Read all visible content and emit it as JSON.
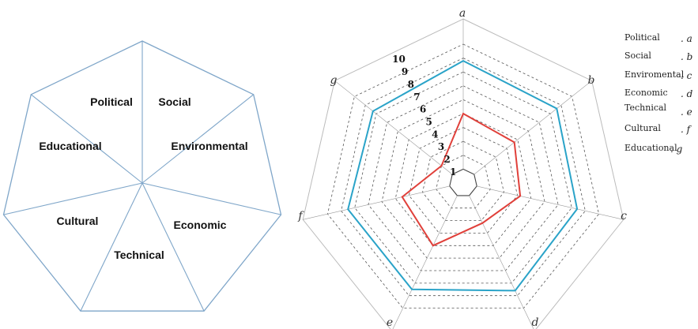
{
  "colors": {
    "heptagon_outline": "#7fa6c9",
    "frame_outline": "#bbbbbb",
    "grid_dashed": "#555555",
    "inner_ring": "#444444",
    "series_blue": "#2aa3c8",
    "series_red": "#e0403a"
  },
  "left_diagram": {
    "sectors": [
      "Political",
      "Social",
      "Environmental",
      "Economic",
      "Technical",
      "Cultural",
      "Educational"
    ]
  },
  "chart_data": {
    "type": "radar",
    "axes": [
      "a",
      "b",
      "c",
      "d",
      "e",
      "f",
      "g"
    ],
    "ring_labels": [
      "1",
      "2",
      "3",
      "4",
      "5",
      "6",
      "7",
      "8",
      "9",
      "10"
    ],
    "rmax": 10,
    "grid": true,
    "series": [
      {
        "values": [
          8.8,
          8.6,
          8.4,
          8.6,
          8.5,
          8.5,
          8.3
        ],
        "color": "#2aa3c8"
      },
      {
        "values": [
          5.0,
          4.7,
          4.2,
          3.2,
          5.0,
          4.5,
          2.0
        ],
        "color": "#e0403a"
      }
    ],
    "legend": [
      {
        "name": "Political",
        "letter": ". a"
      },
      {
        "name": "Social",
        "letter": ". b"
      },
      {
        "name": "Enviromental",
        "letter": ". c"
      },
      {
        "name": "Economic",
        "letter": ". d"
      },
      {
        "name": "Technical",
        "letter": ". e"
      },
      {
        "name": "Cultural",
        "letter": ". f"
      },
      {
        "name": "Educational",
        "letter": ". g"
      }
    ]
  }
}
